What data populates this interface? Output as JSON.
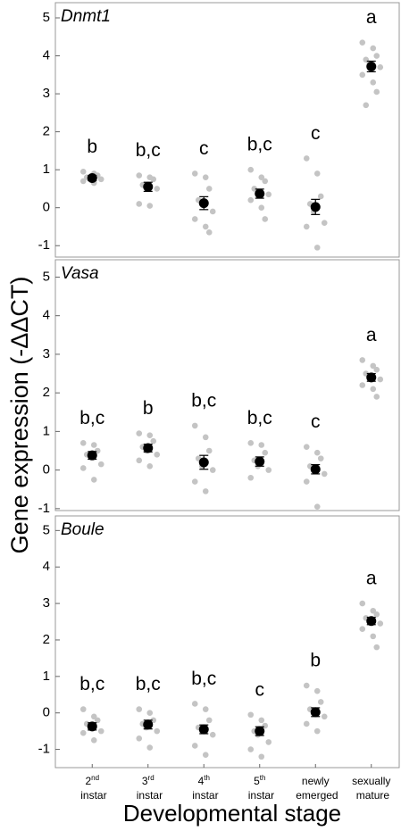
{
  "chart_data": [
    {
      "type": "dot",
      "title": "Dnmt1",
      "ylim": [
        -1.3,
        5.4
      ],
      "yticks": [
        -1,
        0,
        1,
        2,
        3,
        4,
        5
      ],
      "values": [
        0.78,
        0.55,
        0.12,
        0.37,
        0.02,
        3.72
      ],
      "errors": [
        0.07,
        0.12,
        0.17,
        0.12,
        0.2,
        0.14
      ],
      "letters": [
        "b",
        "b,c",
        "c",
        "b,c",
        "c",
        "a"
      ],
      "points": [
        [
          0.95,
          0.9,
          0.85,
          0.8,
          0.78,
          0.75,
          0.7,
          0.65
        ],
        [
          0.85,
          0.8,
          0.75,
          0.6,
          0.55,
          0.5,
          0.1,
          0.05
        ],
        [
          0.9,
          0.8,
          0.5,
          0.2,
          0.1,
          -0.1,
          -0.3,
          -0.5,
          -0.65
        ],
        [
          1.0,
          0.8,
          0.7,
          0.5,
          0.4,
          0.35,
          0.2,
          0.0,
          -0.3
        ],
        [
          1.3,
          0.9,
          0.3,
          0.1,
          -0.1,
          -0.4,
          -0.5,
          -1.05
        ],
        [
          4.35,
          4.2,
          4.0,
          3.9,
          3.8,
          3.7,
          3.5,
          3.3,
          3.05,
          2.7
        ]
      ],
      "point_color": "#c4c4c4",
      "mean_color": "#000000"
    },
    {
      "type": "dot",
      "title": "Vasa",
      "ylim": [
        -1.05,
        5.45
      ],
      "yticks": [
        -1,
        0,
        1,
        2,
        3,
        4,
        5
      ],
      "values": [
        0.38,
        0.57,
        0.2,
        0.22,
        0.02,
        2.4
      ],
      "errors": [
        0.1,
        0.1,
        0.18,
        0.12,
        0.12,
        0.1
      ],
      "letters": [
        "b,c",
        "b",
        "b,c",
        "b,c",
        "c",
        "a"
      ],
      "points": [
        [
          0.7,
          0.65,
          0.5,
          0.4,
          0.35,
          0.15,
          0.05,
          -0.25
        ],
        [
          0.95,
          0.9,
          0.75,
          0.6,
          0.5,
          0.4,
          0.25,
          0.1
        ],
        [
          1.15,
          0.85,
          0.5,
          0.3,
          0.1,
          0.0,
          -0.3,
          -0.55
        ],
        [
          0.7,
          0.65,
          0.45,
          0.25,
          0.1,
          0.0,
          -0.2
        ],
        [
          0.6,
          0.45,
          0.3,
          0.1,
          0.0,
          -0.1,
          -0.3,
          -0.95
        ],
        [
          2.85,
          2.7,
          2.6,
          2.5,
          2.4,
          2.35,
          2.2,
          2.1,
          1.9
        ]
      ],
      "point_color": "#c4c4c4",
      "mean_color": "#000000"
    },
    {
      "type": "dot",
      "title": "Boule",
      "ylim": [
        -1.5,
        5.4
      ],
      "yticks": [
        -1,
        0,
        1,
        2,
        3,
        4,
        5
      ],
      "values": [
        -0.37,
        -0.32,
        -0.45,
        -0.5,
        0.02,
        2.52
      ],
      "errors": [
        0.1,
        0.12,
        0.12,
        0.12,
        0.12,
        0.1
      ],
      "letters": [
        "b,c",
        "b,c",
        "b,c",
        "c",
        "b",
        "a"
      ],
      "points": [
        [
          0.1,
          -0.1,
          -0.2,
          -0.3,
          -0.4,
          -0.5,
          -0.55,
          -0.75
        ],
        [
          0.1,
          0.0,
          -0.2,
          -0.3,
          -0.4,
          -0.5,
          -0.7,
          -0.95
        ],
        [
          0.25,
          0.1,
          -0.2,
          -0.4,
          -0.5,
          -0.6,
          -0.9,
          -1.15
        ],
        [
          -0.05,
          -0.2,
          -0.35,
          -0.5,
          -0.6,
          -0.8,
          -1.0,
          -1.2
        ],
        [
          0.75,
          0.6,
          0.3,
          0.1,
          0.0,
          -0.1,
          -0.3,
          -0.5
        ],
        [
          3.0,
          2.8,
          2.7,
          2.6,
          2.5,
          2.45,
          2.3,
          2.1,
          1.8
        ]
      ],
      "point_color": "#c4c4c4",
      "mean_color": "#000000",
      "categories": [
        "2nd instar",
        "3rd instar",
        "4th instar",
        "5th instar",
        "newly emerged",
        "sexually mature"
      ],
      "x_label": "Developmental stage",
      "y_label": "Gene expression (-ΔΔCT)"
    }
  ]
}
